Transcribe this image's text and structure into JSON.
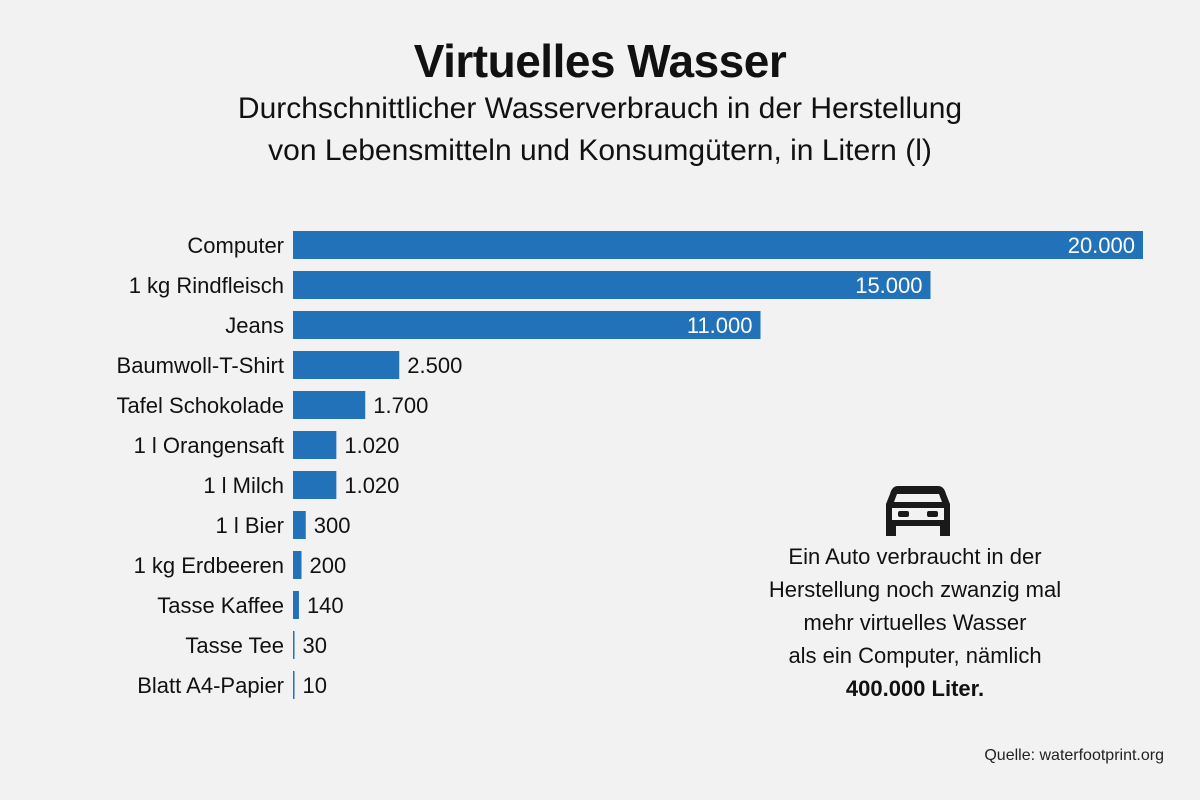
{
  "title": "Virtuelles Wasser",
  "subtitle": [
    "Durchschnittlicher Wasserverbrauch in der Herstellung",
    "von Lebensmitteln und Konsumgütern, in Litern (l)"
  ],
  "chart_data": {
    "type": "bar",
    "orientation": "horizontal",
    "categories": [
      "Computer",
      "1 kg Rindfleisch",
      "Jeans",
      "Baumwoll-T-Shirt",
      "Tafel Schokolade",
      "1 l Orangensaft",
      "1 l Milch",
      "1 l Bier",
      "1 kg Erdbeeren",
      "Tasse Kaffee",
      "Tasse Tee",
      "Blatt A4-Papier"
    ],
    "values": [
      20000,
      15000,
      11000,
      2500,
      1700,
      1020,
      1020,
      300,
      200,
      140,
      30,
      10
    ],
    "data_labels": [
      "20.000",
      "15.000",
      "11.000",
      "2.500",
      "1.700",
      "1.020",
      "1.020",
      "300",
      "200",
      "140",
      "30",
      "10"
    ],
    "xlim": [
      0,
      20000
    ],
    "grid": false,
    "bar_color": "#2272b9"
  },
  "note": {
    "icon": "car-icon",
    "lines": [
      "Ein Auto verbraucht in der",
      "Herstellung noch zwanzig mal",
      "mehr virtuelles Wasser",
      "als ein Computer, nämlich"
    ],
    "highlight": "400.000 Liter."
  },
  "source": "Quelle: waterfootprint.org"
}
